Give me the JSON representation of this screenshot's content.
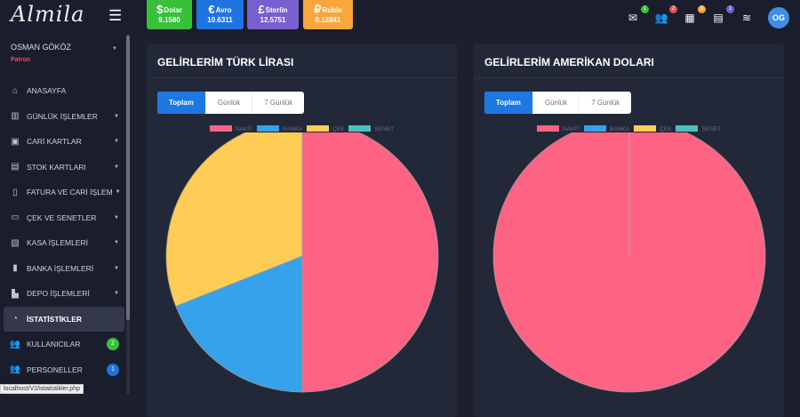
{
  "app": {
    "logo": "Almila"
  },
  "currencies": [
    {
      "symbol": "$",
      "name": "Dolar",
      "value": "9.1580",
      "color": "#37c13b"
    },
    {
      "symbol": "€",
      "name": "Avro",
      "value": "10.6311",
      "color": "#1f74e0"
    },
    {
      "symbol": "£",
      "name": "Sterlin",
      "value": "12.5751",
      "color": "#7a5fd0"
    },
    {
      "symbol": "₽",
      "name": "Ruble",
      "value": "0.12841",
      "color": "#f9a63a"
    }
  ],
  "top_icons": [
    {
      "icon": "envelope-icon",
      "glyph": "✉",
      "badge": "1",
      "color": "#37c13b"
    },
    {
      "icon": "users-icon",
      "glyph": "👥",
      "badge": "2",
      "color": "#e0525f"
    },
    {
      "icon": "boxes-icon",
      "glyph": "▦",
      "badge": "3",
      "color": "#f9a63a"
    },
    {
      "icon": "id-card-icon",
      "glyph": "▤",
      "badge": "1",
      "color": "#7a5fd0"
    },
    {
      "icon": "layers-icon",
      "glyph": "≋",
      "badge": null,
      "color": null
    }
  ],
  "user": {
    "name": "OSMAN GÖKÖZ",
    "role": "Patron",
    "initials": "OG"
  },
  "menu": [
    {
      "label": "ANASAYFA",
      "icon": "⌂",
      "dropdown": false
    },
    {
      "label": "GÜNLÜK İŞLEMLER",
      "icon": "▥",
      "dropdown": true
    },
    {
      "label": "CARİ KARTLAR",
      "icon": "▣",
      "dropdown": true
    },
    {
      "label": "STOK KARTLARI",
      "icon": "▤",
      "dropdown": true
    },
    {
      "label": "FATURA VE CARİ İŞLEM",
      "icon": "▯",
      "dropdown": true
    },
    {
      "label": "ÇEK VE SENETLER",
      "icon": "▭",
      "dropdown": true
    },
    {
      "label": "KASA İŞLEMLERİ",
      "icon": "▧",
      "dropdown": true
    },
    {
      "label": "BANKA İŞLEMLERİ",
      "icon": "▮",
      "dropdown": true
    },
    {
      "label": "DEPO İŞLEMLERİ",
      "icon": "▙",
      "dropdown": true
    },
    {
      "label": "İSTATİSTİKLER",
      "icon": "◔",
      "dropdown": false,
      "active": true
    },
    {
      "label": "KULLANICILAR",
      "icon": "👥",
      "count": "2",
      "count_color": "#37c13b"
    },
    {
      "label": "PERSONELLER",
      "icon": "👥",
      "count": "1",
      "count_color": "#1f74e0"
    }
  ],
  "status_url": "localhost/V2/istatistikler.php",
  "tabs": [
    "Toplam",
    "Günlük",
    "7 Günlük"
  ],
  "chart_data": [
    {
      "type": "pie",
      "title": "GELİRLERİM TÜRK LİRASI",
      "categories": [
        "NAKİT",
        "BANKA",
        "ÇEK",
        "SENET"
      ],
      "values": [
        50,
        19,
        31,
        0
      ],
      "colors": [
        "#ff6384",
        "#36a2eb",
        "#ffcd56",
        "#4bc0c0"
      ],
      "legend": "top"
    },
    {
      "type": "pie",
      "title": "GELİRLERİM AMERİKAN DOLARI",
      "categories": [
        "NAKİT",
        "BANKA",
        "ÇEK",
        "SENET"
      ],
      "values": [
        100,
        0,
        0,
        0
      ],
      "colors": [
        "#ff6384",
        "#36a2eb",
        "#ffcd56",
        "#4bc0c0"
      ],
      "legend": "top"
    }
  ]
}
